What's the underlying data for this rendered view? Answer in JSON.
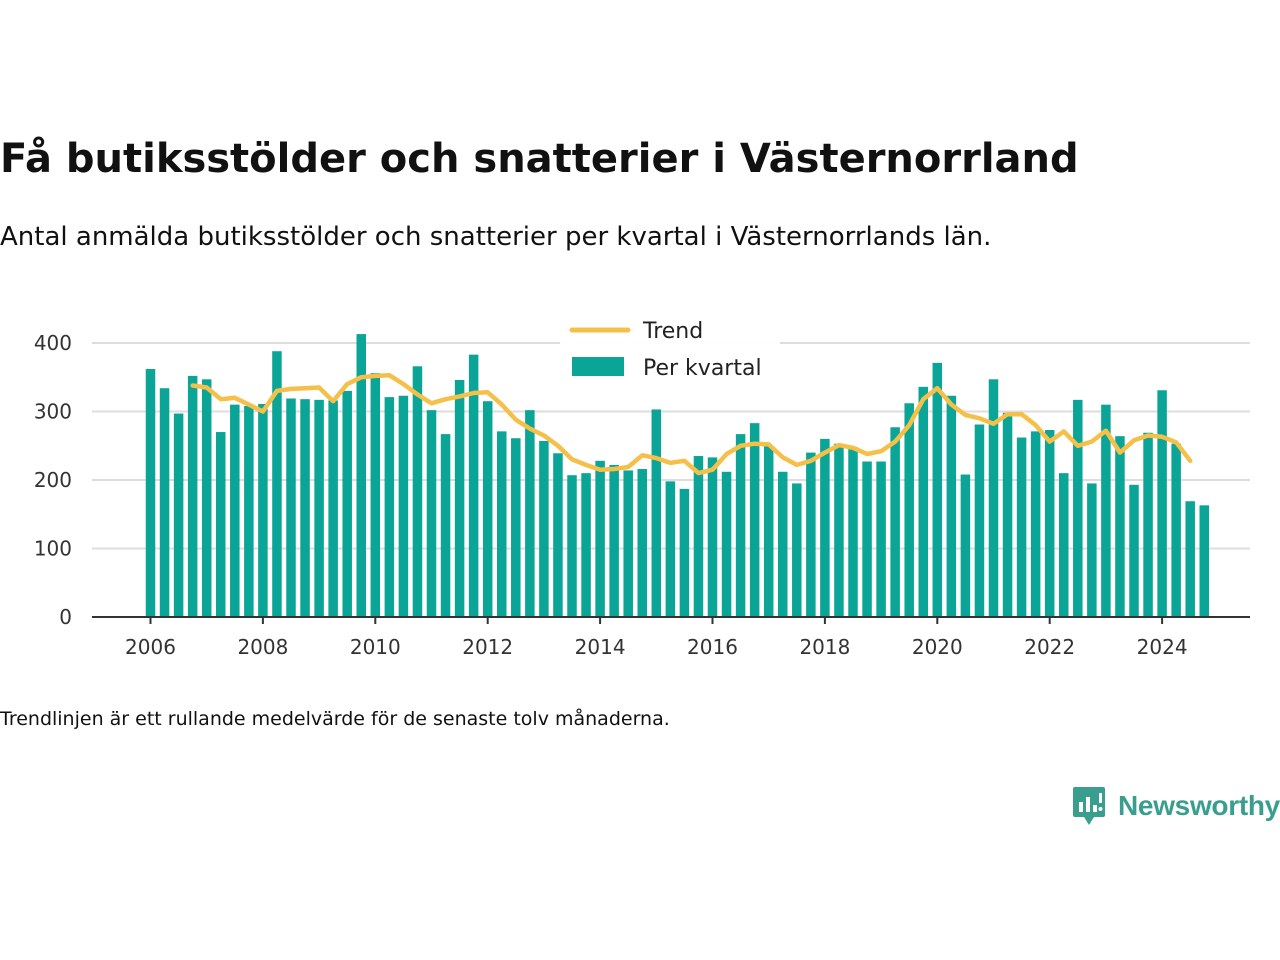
{
  "title": "Få butiksstölder och snatterier i Västernorrland",
  "subtitle": "Antal anmälda butiksstölder och snatterier per kvartal i Västernorrlands län.",
  "footnote": "Trendlinjen är ett rullande medelvärde för de senaste tolv månaderna.",
  "brand": {
    "name": "Newsworthy",
    "logo_icon": "chart-speech-bubble-icon",
    "color": "#3a9e8e"
  },
  "chart_data": {
    "type": "bar",
    "x_start_year": 2006,
    "xticks": [
      2006,
      2008,
      2010,
      2012,
      2014,
      2016,
      2018,
      2020,
      2022,
      2024
    ],
    "yticks": [
      0,
      100,
      200,
      300,
      400
    ],
    "ylim": [
      0,
      420
    ],
    "grid": true,
    "legend_position": "top",
    "colors": {
      "bars": "#0aa596",
      "trend": "#f5c04a",
      "grid": "#dddddd",
      "axis": "#333333"
    },
    "series": [
      {
        "name": "Per kvartal",
        "type": "bar",
        "values": [
          362,
          334,
          297,
          352,
          347,
          270,
          310,
          308,
          311,
          388,
          319,
          318,
          317,
          316,
          330,
          413,
          356,
          321,
          323,
          366,
          302,
          267,
          346,
          383,
          315,
          271,
          261,
          302,
          257,
          239,
          207,
          210,
          228,
          222,
          214,
          216,
          303,
          198,
          187,
          235,
          233,
          212,
          267,
          283,
          250,
          212,
          195,
          240,
          260,
          253,
          248,
          227,
          227,
          277,
          312,
          336,
          371,
          323,
          208,
          281,
          347,
          298,
          262,
          271,
          273,
          210,
          317,
          195,
          310,
          264,
          193,
          269,
          331,
          253,
          169,
          163
        ]
      },
      {
        "name": "Trend",
        "type": "line",
        "start_index": 3,
        "values": [
          338,
          335,
          318,
          320,
          310,
          300,
          330,
          333,
          334,
          335,
          315,
          340,
          350,
          352,
          353,
          340,
          325,
          312,
          318,
          322,
          327,
          328,
          310,
          288,
          275,
          265,
          250,
          230,
          222,
          215,
          216,
          219,
          236,
          232,
          225,
          228,
          210,
          215,
          238,
          250,
          253,
          252,
          233,
          222,
          228,
          240,
          251,
          247,
          238,
          242,
          256,
          280,
          318,
          334,
          310,
          295,
          290,
          282,
          296,
          296,
          280,
          256,
          271,
          250,
          256,
          272,
          240,
          258,
          265,
          263,
          255,
          228
        ]
      }
    ]
  }
}
